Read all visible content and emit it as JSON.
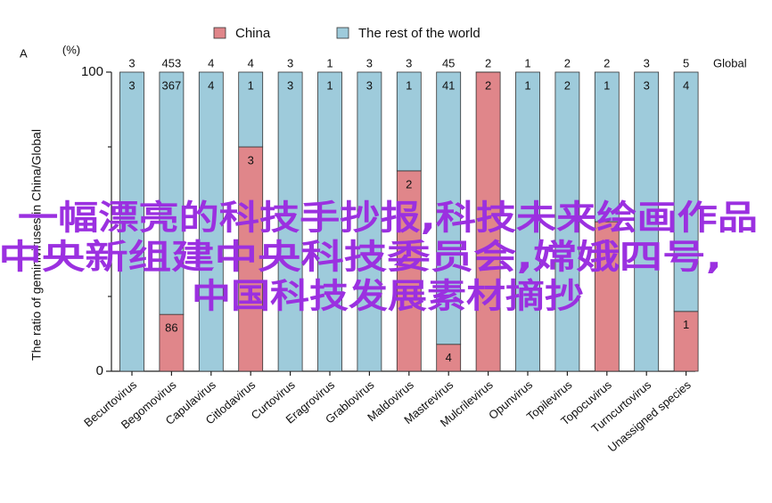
{
  "chart_data": {
    "type": "stacked_bar_100",
    "panel_label": "A",
    "y_unit": "(%)",
    "ylabel": "The ratio of geminiviruses in China/Global",
    "global_label": "Global",
    "categories": [
      "Becurtovirus",
      "Begomovirus",
      "Capulavirus",
      "Citlodavirus",
      "Curtovirus",
      "Eragrovirus",
      "Grablovirus",
      "Maldovirus",
      "Mastrevirus",
      "Mulcrilevirus",
      "Opunvirus",
      "Topilevirus",
      "Topocuvirus",
      "Turncurtovirus",
      "Unassigned species"
    ],
    "global_counts": [
      3,
      453,
      4,
      4,
      3,
      1,
      3,
      3,
      45,
      2,
      1,
      2,
      2,
      3,
      5
    ],
    "series": [
      {
        "name": "China",
        "color": "#e0868a",
        "values": [
          0,
          19,
          0,
          75,
          0,
          0,
          0,
          67,
          9,
          100,
          0,
          0,
          50,
          0,
          20
        ],
        "counts": [
          null,
          86,
          null,
          3,
          null,
          null,
          null,
          2,
          4,
          2,
          null,
          null,
          null,
          null,
          1
        ]
      },
      {
        "name": "The rest of the world",
        "color": "#9ecbdb",
        "values": [
          100,
          81,
          100,
          25,
          100,
          100,
          100,
          33,
          91,
          0,
          100,
          100,
          50,
          100,
          80
        ],
        "counts": [
          3,
          367,
          4,
          1,
          3,
          1,
          3,
          1,
          41,
          null,
          1,
          2,
          1,
          3,
          4
        ]
      }
    ],
    "ylim": [
      0,
      100
    ],
    "yticks": [
      0,
      100
    ],
    "minor_yticks": [
      25,
      50,
      75
    ]
  },
  "overlay_text": [
    "一幅漂亮的科技手抄报,科技未来绘画作品",
    ",中央新组建中央科技委员会,嫦娥四号,",
    "中国科技发展素材摘抄"
  ]
}
